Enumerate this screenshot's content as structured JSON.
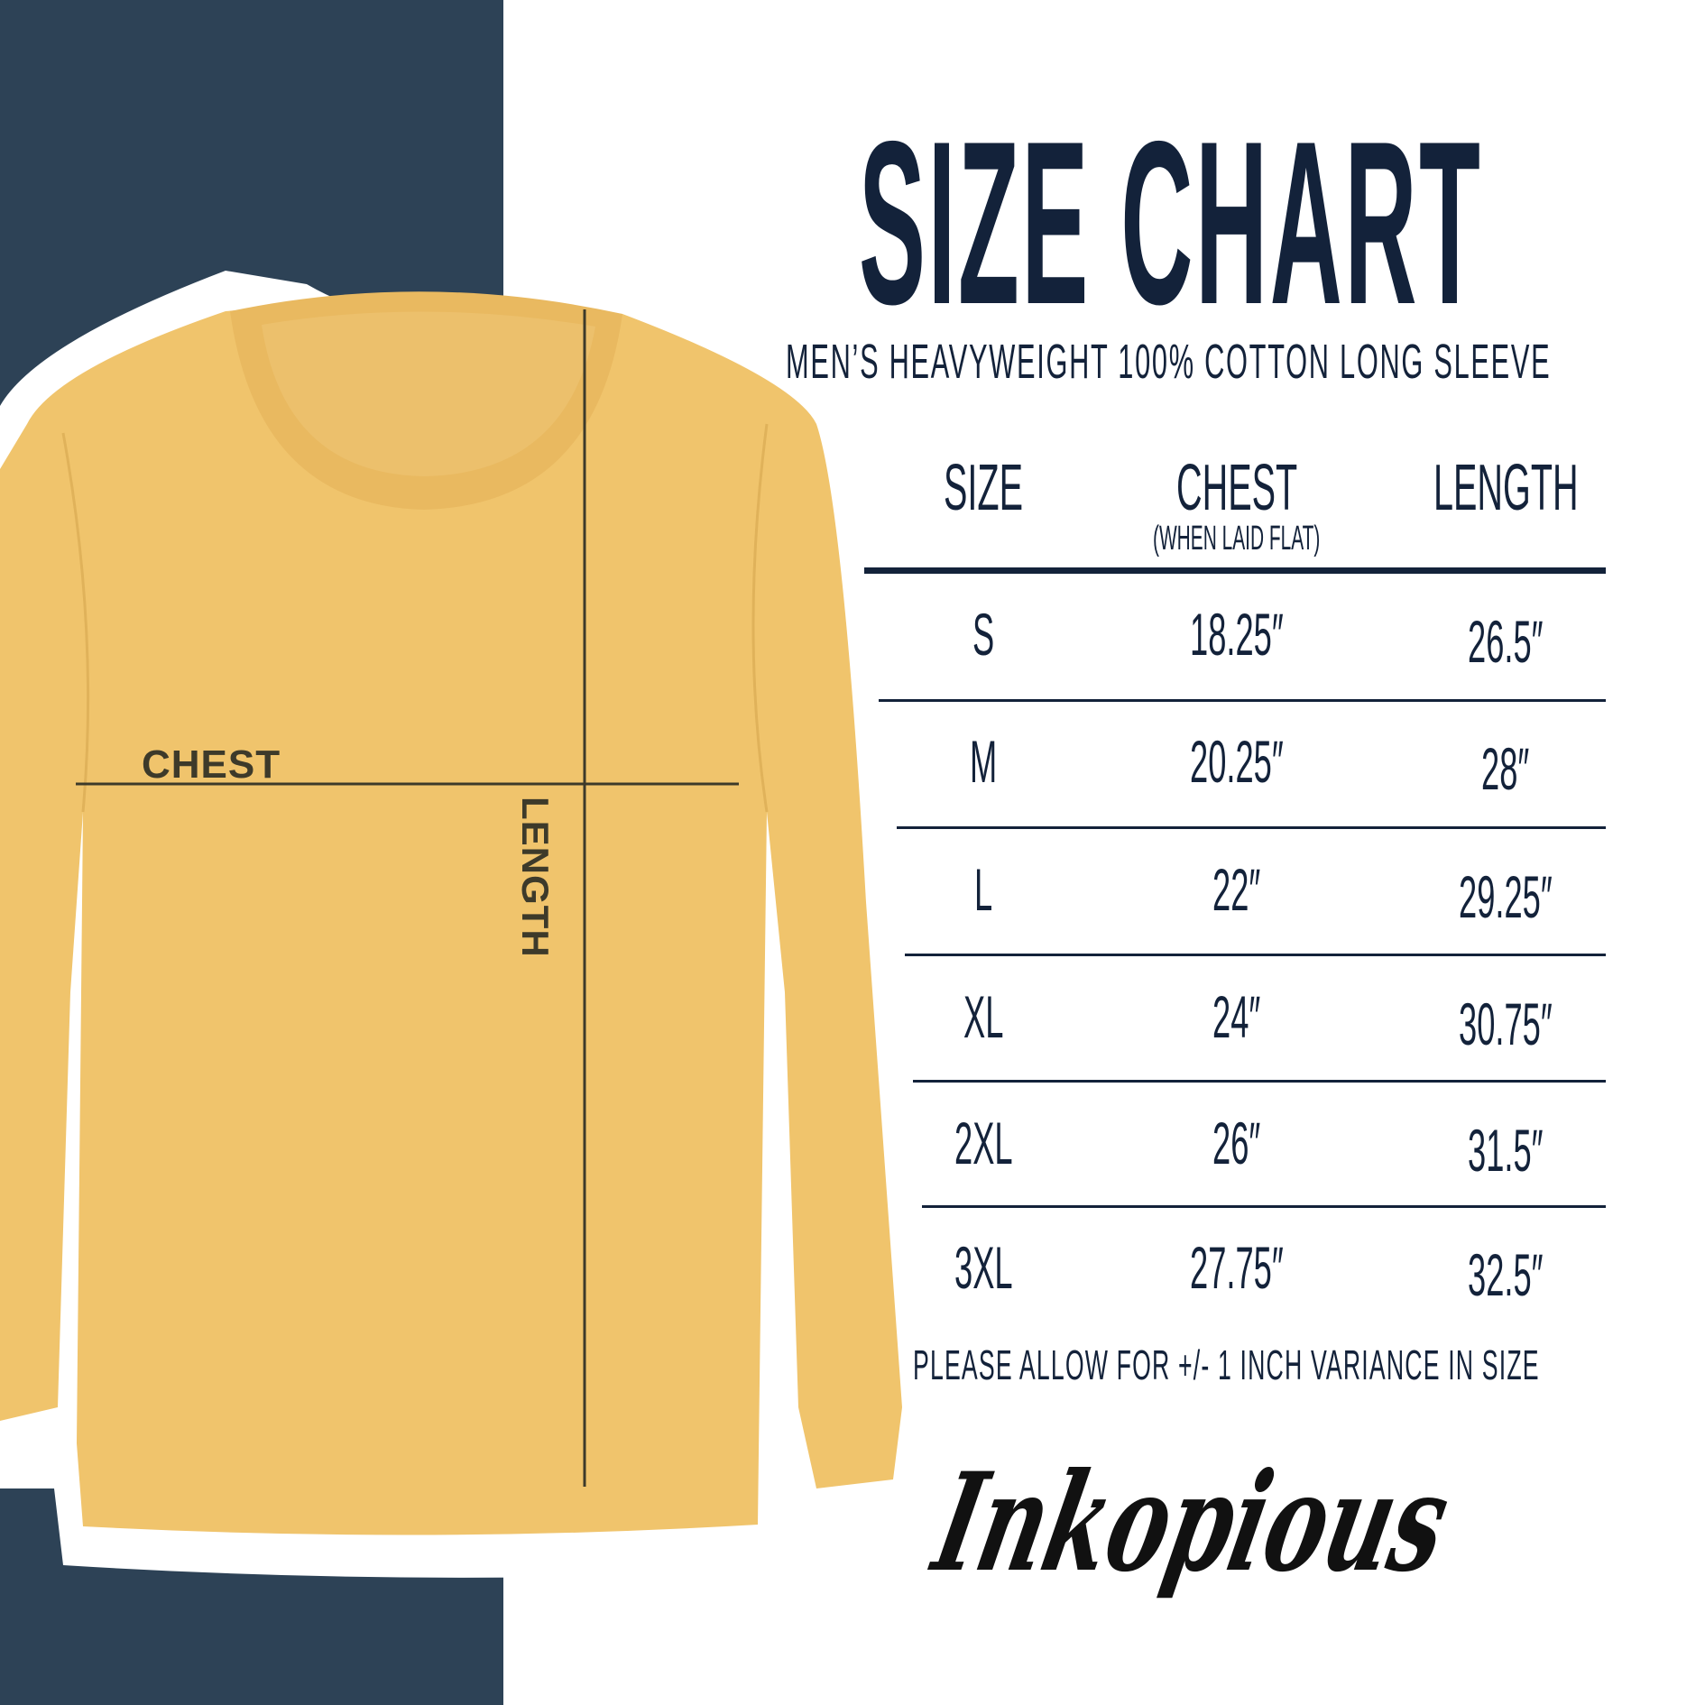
{
  "title": "SIZE CHART",
  "subtitle": "MEN’S HEAVYWEIGHT 100% COTTON LONG SLEEVE",
  "colors": {
    "panel": "#2d4256",
    "text": "#13223a",
    "shirt": "#f0c46c"
  },
  "diagram": {
    "chest_label": "CHEST",
    "length_label": "LENGTH"
  },
  "chart_data": {
    "type": "table",
    "columns": [
      "SIZE",
      "CHEST",
      "LENGTH"
    ],
    "column_notes": {
      "CHEST": "(WHEN LAID FLAT)"
    },
    "rows": [
      [
        "S",
        "18.25″",
        "26.5″"
      ],
      [
        "M",
        "20.25″",
        "28″"
      ],
      [
        "L",
        "22″",
        "29.25″"
      ],
      [
        "XL",
        "24″",
        "30.75″"
      ],
      [
        "2XL",
        "26″",
        "31.5″"
      ],
      [
        "3XL",
        "27.75″",
        "32.5″"
      ]
    ]
  },
  "note": "PLEASE ALLOW FOR +/- 1 INCH VARIANCE IN SIZE",
  "logo": "Inkopious"
}
